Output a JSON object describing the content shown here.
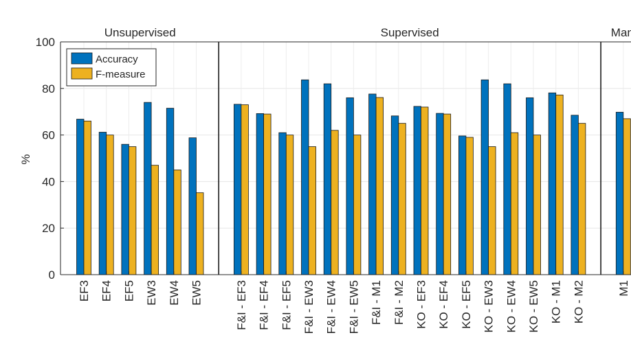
{
  "chart_data": {
    "type": "bar",
    "ylabel": "%",
    "ylim": [
      0,
      100
    ],
    "yticks": [
      0,
      20,
      40,
      60,
      80,
      100
    ],
    "grid": true,
    "legend_placement": "top-left",
    "groups": [
      {
        "label": "Unsupervised",
        "first_index": 0,
        "count": 6
      },
      {
        "label": "Supervised",
        "first_index": 6,
        "count": 16
      },
      {
        "label": "Man",
        "first_index": 22,
        "count": 1
      }
    ],
    "categories": [
      "EF3",
      "EF4",
      "EF5",
      "EW3",
      "EW4",
      "EW5",
      "F&I - EF3",
      "F&I - EF4",
      "F&I - EF5",
      "F&I - EW3",
      "F&I - EW4",
      "F&I - EW5",
      "F&I - M1",
      "F&I - M2",
      "KO - EF3",
      "KO - EF4",
      "KO - EF5",
      "KO - EW3",
      "KO - EW4",
      "KO - EW5",
      "KO - M1",
      "KO - M2",
      "M1"
    ],
    "series": [
      {
        "name": "Accuracy",
        "color": "#0072BD",
        "values": [
          66.8,
          61.2,
          56,
          74,
          71.5,
          58.8,
          73.2,
          69.2,
          61,
          83.7,
          82,
          76,
          77.6,
          68.2,
          72.3,
          69.3,
          59.6,
          83.7,
          82,
          76,
          78.1,
          68.5,
          69.8
        ]
      },
      {
        "name": "F-measure",
        "color": "#EDB120",
        "values": [
          66,
          60,
          55,
          47,
          45,
          35.2,
          73,
          69,
          60,
          55,
          62,
          60,
          76.1,
          65,
          72,
          69,
          59,
          55,
          61,
          60,
          77.2,
          65,
          67
        ]
      }
    ]
  }
}
